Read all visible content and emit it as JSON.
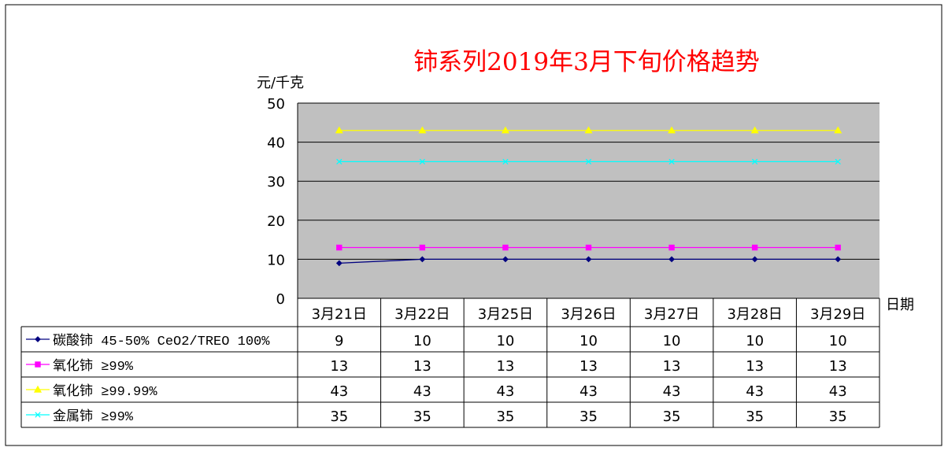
{
  "chart_data": {
    "type": "line",
    "title": "铈系列2019年3月下旬价格趋势",
    "ylabel": "元/千克",
    "xlabel": "日期",
    "ylim": [
      0,
      50
    ],
    "y_ticks": [
      "0",
      "10",
      "20",
      "30",
      "40",
      "50"
    ],
    "categories": [
      "3月21日",
      "3月22日",
      "3月25日",
      "3月26日",
      "3月27日",
      "3月28日",
      "3月29日"
    ],
    "grid": true,
    "legend": "data-table",
    "series": [
      {
        "name": "碳酸铈 45-50% CeO2/TREO 100%",
        "color": "#000080",
        "marker": "diamond",
        "values": [
          9,
          10,
          10,
          10,
          10,
          10,
          10
        ]
      },
      {
        "name": "氧化铈 ≥99%",
        "color": "#ff00ff",
        "marker": "square",
        "values": [
          13,
          13,
          13,
          13,
          13,
          13,
          13
        ]
      },
      {
        "name": "氧化铈 ≥99.99%",
        "color": "#ffff00",
        "marker": "triangle",
        "values": [
          43,
          43,
          43,
          43,
          43,
          43,
          43
        ]
      },
      {
        "name": "金属铈 ≥99%",
        "color": "#00ffff",
        "marker": "x",
        "values": [
          35,
          35,
          35,
          35,
          35,
          35,
          35
        ]
      }
    ]
  }
}
